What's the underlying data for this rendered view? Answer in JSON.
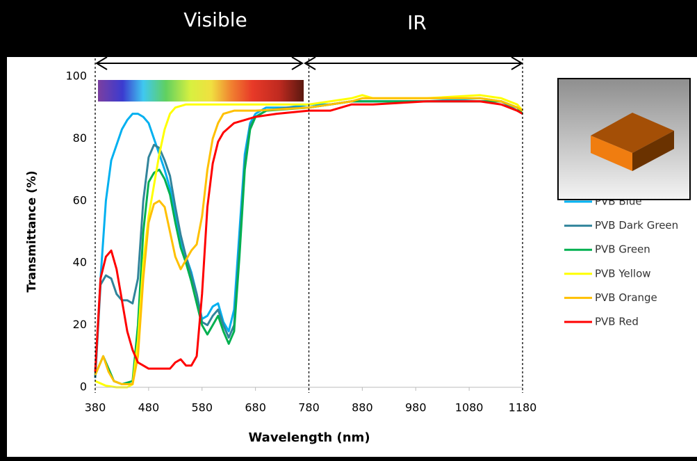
{
  "chart_data": {
    "type": "line",
    "annotations": [
      "Visible",
      "IR"
    ],
    "x_label": "Wavelength (nm)",
    "y_label": "Transmittance (%)",
    "xlim": [
      380,
      1180
    ],
    "xticks": [
      380,
      480,
      580,
      680,
      780,
      880,
      980,
      1080,
      1180
    ],
    "ylim": [
      0,
      100
    ],
    "yticks": [
      0,
      20,
      40,
      60,
      80,
      100
    ],
    "grid": false,
    "series": [
      {
        "name": "PVB Blue",
        "color": "#00b0f0",
        "x": [
          380,
          390,
          400,
          410,
          420,
          430,
          440,
          450,
          460,
          470,
          480,
          490,
          500,
          510,
          520,
          530,
          540,
          550,
          560,
          570,
          580,
          590,
          600,
          610,
          620,
          630,
          640,
          650,
          660,
          670,
          680,
          700,
          740,
          780,
          820,
          860,
          900,
          1000,
          1100,
          1140,
          1170,
          1180
        ],
        "values": [
          3,
          35,
          60,
          73,
          78,
          83,
          86,
          88,
          88,
          87,
          85,
          80,
          75,
          70,
          64,
          55,
          47,
          42,
          37,
          30,
          22,
          23,
          26,
          27,
          21,
          18,
          25,
          50,
          75,
          85,
          88,
          90,
          90,
          91,
          91,
          92,
          92,
          92,
          93,
          92,
          90,
          88
        ]
      },
      {
        "name": "PVB Dark Green",
        "color": "#31849b",
        "x": [
          380,
          390,
          400,
          410,
          420,
          430,
          440,
          450,
          460,
          470,
          480,
          490,
          500,
          510,
          520,
          530,
          540,
          550,
          560,
          570,
          580,
          590,
          600,
          610,
          620,
          630,
          640,
          650,
          660,
          670,
          680,
          700,
          740,
          780,
          820,
          860,
          900,
          1000,
          1100,
          1140,
          1170,
          1180
        ],
        "values": [
          3,
          33,
          36,
          35,
          30,
          28,
          28,
          27,
          35,
          60,
          74,
          78,
          77,
          73,
          68,
          58,
          49,
          42,
          36,
          30,
          21,
          20,
          23,
          25,
          20,
          16,
          20,
          45,
          72,
          84,
          87,
          89,
          90,
          90,
          91,
          92,
          92,
          92,
          92,
          92,
          89,
          88
        ]
      },
      {
        "name": "PVB Green",
        "color": "#00b050",
        "x": [
          380,
          395,
          405,
          415,
          430,
          450,
          460,
          470,
          480,
          490,
          500,
          510,
          520,
          530,
          540,
          550,
          560,
          570,
          580,
          590,
          600,
          610,
          620,
          630,
          640,
          650,
          660,
          670,
          680,
          700,
          780,
          820,
          860,
          900,
          1000,
          1100,
          1140,
          1170,
          1180
        ],
        "values": [
          4,
          10,
          6,
          2,
          1,
          2,
          20,
          50,
          66,
          69,
          70,
          67,
          62,
          53,
          45,
          40,
          34,
          27,
          20,
          17,
          20,
          23,
          18,
          14,
          18,
          42,
          70,
          83,
          87,
          89,
          90,
          91,
          92,
          92,
          92,
          92,
          92,
          90,
          88
        ]
      },
      {
        "name": "PVB Yellow",
        "color": "#ffff00",
        "x": [
          380,
          400,
          420,
          440,
          450,
          460,
          470,
          480,
          490,
          500,
          510,
          520,
          530,
          550,
          600,
          700,
          780,
          820,
          860,
          880,
          900,
          1000,
          1100,
          1140,
          1170,
          1180
        ],
        "values": [
          2,
          0.5,
          0,
          0,
          1,
          15,
          40,
          55,
          65,
          75,
          83,
          88,
          90,
          91,
          91,
          91,
          91,
          92,
          93,
          94,
          93,
          93,
          94,
          93,
          91,
          89
        ]
      },
      {
        "name": "PVB Orange",
        "color": "#ffc000",
        "x": [
          380,
          395,
          405,
          415,
          430,
          450,
          460,
          470,
          480,
          490,
          500,
          510,
          520,
          530,
          540,
          550,
          560,
          570,
          580,
          590,
          600,
          610,
          620,
          640,
          680,
          780,
          820,
          860,
          880,
          1000,
          1100,
          1140,
          1170,
          1180
        ],
        "values": [
          4,
          10,
          5,
          2,
          1,
          1,
          10,
          35,
          53,
          59,
          60,
          58,
          50,
          42,
          38,
          41,
          44,
          46,
          55,
          70,
          80,
          85,
          88,
          89,
          89,
          90,
          91,
          92,
          93,
          93,
          93,
          92,
          90,
          89
        ]
      },
      {
        "name": "PVB Red",
        "color": "#ff0000",
        "x": [
          380,
          390,
          400,
          410,
          420,
          430,
          440,
          450,
          460,
          470,
          480,
          500,
          520,
          530,
          540,
          550,
          560,
          570,
          580,
          590,
          600,
          610,
          620,
          640,
          680,
          720,
          780,
          820,
          840,
          860,
          900,
          1000,
          1100,
          1140,
          1170,
          1180
        ],
        "values": [
          5,
          35,
          42,
          44,
          38,
          28,
          18,
          12,
          8,
          7,
          6,
          6,
          6,
          8,
          9,
          7,
          7,
          10,
          30,
          58,
          72,
          79,
          82,
          85,
          87,
          88,
          89,
          89,
          90,
          91,
          91,
          92,
          92,
          91,
          89,
          88
        ]
      }
    ]
  }
}
